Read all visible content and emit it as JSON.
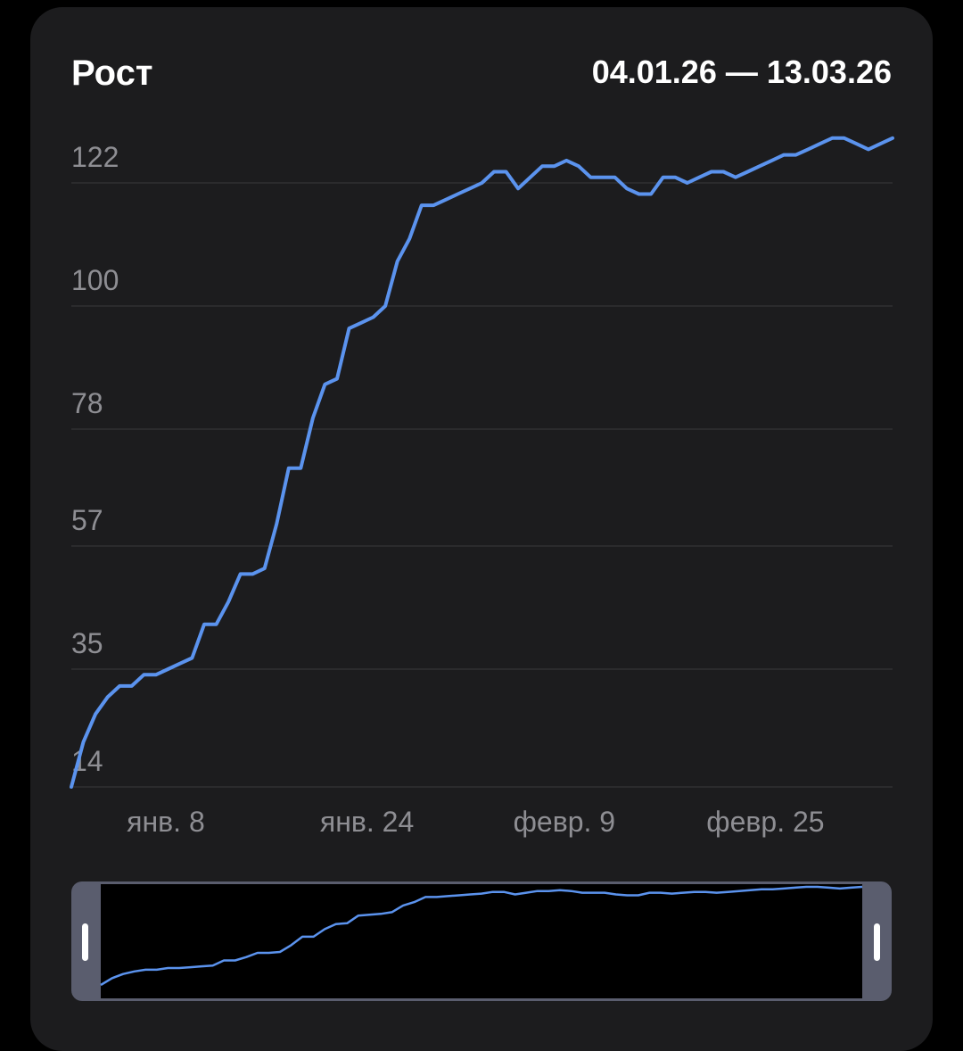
{
  "header": {
    "title": "Рост",
    "date_range": "04.01.26 — 13.03.26"
  },
  "colors": {
    "background": "#000000",
    "card": "#1c1c1e",
    "line": "#5b93ee",
    "grid": "#3a3a3c",
    "tick_text": "#8e8e93",
    "navigator_handle": "#5a5d6e"
  },
  "chart_data": {
    "type": "line",
    "title": "Рост",
    "xlabel": "",
    "ylabel": "",
    "ylim": [
      14,
      122
    ],
    "yticks": [
      14,
      35,
      57,
      78,
      100,
      122
    ],
    "xticks": [
      {
        "label": "янв. 8",
        "x": 5
      },
      {
        "label": "янв. 24",
        "x": 21
      },
      {
        "label": "февр. 9",
        "x": 37
      },
      {
        "label": "февр. 25",
        "x": 53
      }
    ],
    "grid": true,
    "series": [
      {
        "name": "",
        "x": [
          1,
          2,
          3,
          4,
          5,
          6,
          7,
          8,
          9,
          10,
          11,
          12,
          13,
          14,
          15,
          16,
          17,
          18,
          19,
          20,
          21,
          22,
          23,
          24,
          25,
          26,
          27,
          28,
          29,
          30,
          31,
          32,
          33,
          34,
          35,
          36,
          37,
          38,
          39,
          40,
          41,
          42,
          43,
          44,
          45,
          46,
          47,
          48,
          49,
          50,
          51,
          52,
          53,
          54,
          55,
          56,
          57,
          58,
          59,
          60,
          61,
          62,
          63,
          64,
          65,
          66,
          67,
          68,
          69
        ],
        "values": [
          14,
          22,
          27,
          30,
          32,
          32,
          34,
          34,
          35,
          36,
          37,
          43,
          43,
          47,
          52,
          52,
          53,
          61,
          71,
          71,
          80,
          86,
          87,
          96,
          97,
          98,
          100,
          108,
          112,
          118,
          118,
          119,
          120,
          121,
          122,
          124,
          124,
          121,
          123,
          125,
          125,
          126,
          125,
          123,
          123,
          123,
          121,
          120,
          120,
          123,
          123,
          122,
          123,
          124,
          124,
          123,
          124,
          125,
          126,
          127,
          127,
          128,
          129,
          130,
          130,
          129,
          128,
          129,
          130
        ]
      }
    ]
  },
  "navigator": {
    "left_handle": "handle-grip",
    "right_handle": "handle-grip",
    "selection_start": 0,
    "selection_end": 1
  }
}
